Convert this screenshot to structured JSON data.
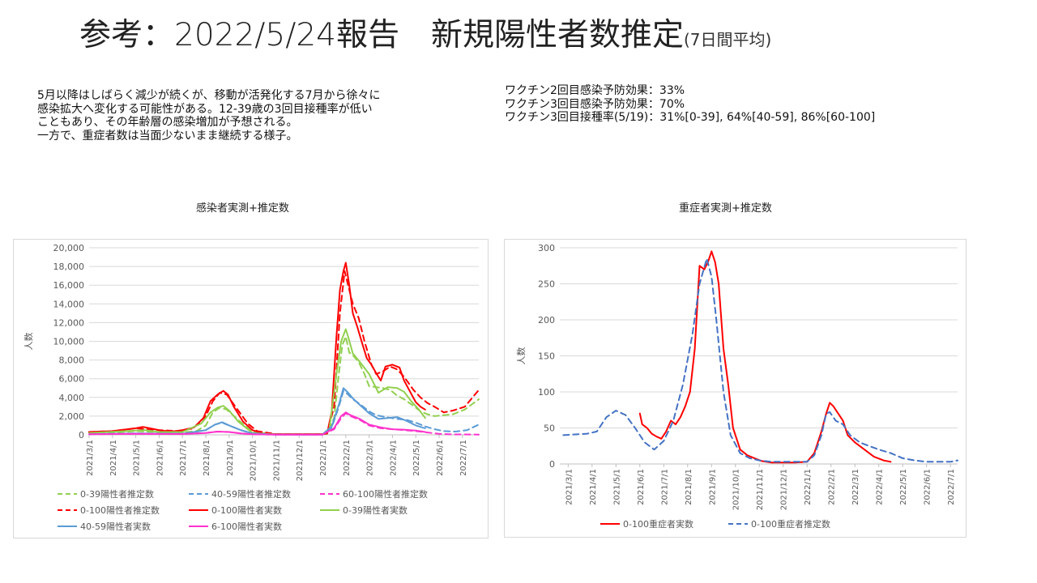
{
  "title": {
    "main": "参考：2022/5/24報告　新規陽性者数推定",
    "sub": "(7日間平均)"
  },
  "notes_left": [
    "5月以降はしばらく減少が続くが、移動が活発化する7月から徐々に",
    "感染拡大へ変化する可能性がある。12-39歳の3回目接種率が低い",
    "こともあり、その年齢層の感染増加が予想される。",
    "一方で、重症者数は当面少ないまま継続する様子。"
  ],
  "notes_right": [
    "ワクチン2回目感染予防効果：33%",
    "ワクチン3回目感染予防効果：70%",
    "ワクチン3回目接種率(5/19)：31%[0-39], 64%[40-59], 86%[60-100]"
  ],
  "chart_data": [
    {
      "type": "line",
      "title": "感染者実測+推定数",
      "ylabel": "人数",
      "ylim": [
        0,
        20000
      ],
      "y_ticks": [
        "0",
        "2,000",
        "4,000",
        "6,000",
        "8,000",
        "10,000",
        "12,000",
        "14,000",
        "16,000",
        "18,000",
        "20,000"
      ],
      "x_ticks": [
        "2021/3/1",
        "2021/4/1",
        "2021/5/1",
        "2021/6/1",
        "2021/7/1",
        "2021/8/1",
        "2021/9/1",
        "2021/10/1",
        "2021/11/1",
        "2021/12/1",
        "2022/1/1",
        "2022/2/1",
        "2022/3/1",
        "2022/4/1",
        "2022/5/1",
        "2022/6/1",
        "2022/7/1"
      ],
      "x_range_month_index": [
        0,
        16.7
      ],
      "legend_placement": "bottom",
      "series": [
        {
          "name": "0-39陽性者推定数",
          "color": "#92d050",
          "dash": true,
          "x": [
            0,
            1,
            2,
            3,
            4,
            4.6,
            5,
            5.3,
            5.6,
            5.9,
            6.3,
            6.8,
            7,
            8,
            9,
            10,
            10.2,
            10.5,
            10.7,
            10.85,
            11.0,
            11.15,
            11.3,
            11.55,
            11.8,
            12.0,
            12.3,
            12.6,
            12.9,
            13.2,
            13.5,
            13.9,
            14.2,
            14.5,
            14.8,
            15.2,
            15.6,
            16.1,
            16.7
          ],
          "y": [
            200,
            250,
            400,
            300,
            250,
            400,
            1000,
            2400,
            2900,
            2700,
            1800,
            700,
            300,
            50,
            50,
            50,
            100,
            1800,
            6500,
            9600,
            10500,
            8800,
            8500,
            7800,
            6500,
            5200,
            5100,
            5000,
            4800,
            4200,
            3800,
            3100,
            2500,
            2200,
            2000,
            2100,
            2200,
            2700,
            3800
          ]
        },
        {
          "name": "40-59陽性者推定数",
          "color": "#5b9bd5",
          "dash": true,
          "x": [
            0,
            2,
            4,
            5,
            5.4,
            5.7,
            6,
            6.5,
            7,
            8,
            9,
            10,
            10.4,
            10.7,
            10.9,
            11.1,
            11.3,
            11.6,
            12.0,
            12.3,
            12.7,
            13.2,
            13.6,
            14.0,
            14.4,
            14.8,
            15.2,
            15.7,
            16.2,
            16.7
          ],
          "y": [
            80,
            150,
            100,
            500,
            1100,
            1300,
            1000,
            500,
            150,
            30,
            30,
            30,
            800,
            3000,
            4700,
            4300,
            3800,
            3300,
            2500,
            2100,
            1900,
            1700,
            1600,
            1300,
            900,
            600,
            400,
            350,
            500,
            1100
          ]
        },
        {
          "name": "60-100陽性者推定数",
          "color": "#ff33cc",
          "dash": true,
          "x": [
            0,
            2,
            4,
            5,
            5.5,
            6,
            6.5,
            7,
            8,
            9,
            10,
            10.5,
            10.8,
            11.0,
            11.2,
            11.6,
            12.0,
            12.5,
            13.0,
            13.5,
            14.0,
            14.5,
            15.0,
            15.5,
            16.7
          ],
          "y": [
            60,
            100,
            80,
            200,
            350,
            300,
            150,
            60,
            20,
            20,
            20,
            600,
            1800,
            2300,
            2000,
            1600,
            1000,
            700,
            600,
            500,
            400,
            250,
            100,
            50,
            30
          ]
        },
        {
          "name": "0-100陽性者推定数",
          "color": "#ff0000",
          "dash": true,
          "x": [
            0,
            1,
            2,
            3,
            3.8,
            4.4,
            4.9,
            5.3,
            5.6,
            5.9,
            6.3,
            6.8,
            7.2,
            8,
            9,
            10,
            10.2,
            10.5,
            10.75,
            10.95,
            11.1,
            11.3,
            11.55,
            11.8,
            12.1,
            12.3,
            12.6,
            12.9,
            13.2,
            13.5,
            13.9,
            14.2,
            14.5,
            14.8,
            15.2,
            15.6,
            16.1,
            16.7
          ],
          "y": [
            300,
            400,
            700,
            500,
            400,
            650,
            1500,
            3600,
            4500,
            4300,
            2900,
            1200,
            400,
            80,
            80,
            80,
            200,
            3000,
            13000,
            17500,
            16000,
            14000,
            12500,
            10000,
            7500,
            6500,
            6800,
            7300,
            7000,
            6200,
            4800,
            4000,
            3400,
            3000,
            2400,
            2600,
            3000,
            4800
          ]
        },
        {
          "name": "0-100陽性者実数",
          "color": "#ff0000",
          "dash": false,
          "x": [
            0,
            1,
            2,
            2.3,
            2.6,
            3,
            3.5,
            4,
            4.5,
            4.9,
            5.2,
            5.5,
            5.75,
            5.95,
            6.2,
            6.6,
            7,
            7.5,
            8,
            9,
            10,
            10.2,
            10.4,
            10.6,
            10.75,
            10.9,
            11.0,
            11.15,
            11.3,
            11.5,
            11.7,
            11.9,
            12.1,
            12.3,
            12.5,
            12.7,
            13.0,
            13.3,
            13.5,
            13.8,
            14.0,
            14.2,
            14.4
          ],
          "y": [
            300,
            400,
            700,
            850,
            700,
            500,
            350,
            500,
            800,
            1800,
            3600,
            4300,
            4700,
            4300,
            3000,
            1400,
            500,
            100,
            80,
            80,
            80,
            150,
            2500,
            10500,
            15500,
            17500,
            18400,
            16000,
            13000,
            11500,
            9800,
            8200,
            7500,
            6600,
            5800,
            7300,
            7500,
            7200,
            5800,
            4400,
            3500,
            3000,
            2700
          ]
        },
        {
          "name": "0-39陽性者実数",
          "color": "#92d050",
          "dash": false,
          "x": [
            0,
            2,
            2.4,
            3,
            4,
            4.8,
            5.2,
            5.5,
            5.75,
            6,
            6.4,
            7,
            8,
            9,
            10,
            10.3,
            10.6,
            10.8,
            11.0,
            11.1,
            11.3,
            11.6,
            12.0,
            12.4,
            12.8,
            13.2,
            13.5,
            13.8,
            14.1,
            14.4
          ],
          "y": [
            200,
            450,
            500,
            300,
            300,
            1200,
            2400,
            2900,
            3100,
            2600,
            1400,
            200,
            40,
            40,
            40,
            700,
            6500,
            10000,
            11300,
            10500,
            8700,
            7800,
            6500,
            4500,
            5100,
            5000,
            4600,
            3600,
            2800,
            1800
          ]
        },
        {
          "name": "40-59陽性者実数",
          "color": "#5b9bd5",
          "dash": false,
          "x": [
            0,
            2,
            4,
            5,
            5.4,
            5.7,
            6,
            6.5,
            7,
            8,
            9,
            10,
            10.4,
            10.7,
            10.9,
            11.1,
            11.3,
            11.6,
            12.0,
            12.4,
            12.8,
            13.2,
            13.6,
            14.0,
            14.4
          ],
          "y": [
            80,
            150,
            120,
            500,
            1100,
            1350,
            1000,
            500,
            150,
            30,
            30,
            30,
            900,
            3200,
            5000,
            4500,
            3900,
            3200,
            2300,
            1700,
            1800,
            1900,
            1500,
            1000,
            700
          ]
        },
        {
          "name": "6-100陽性者実数",
          "color": "#ff33cc",
          "dash": false,
          "x": [
            0,
            2,
            4,
            5,
            5.5,
            6,
            6.5,
            7,
            8,
            9,
            10,
            10.5,
            10.8,
            11.0,
            11.2,
            11.6,
            12.0,
            12.5,
            13.0,
            13.5,
            14.0,
            14.4
          ],
          "y": [
            60,
            110,
            90,
            200,
            350,
            300,
            150,
            60,
            20,
            20,
            20,
            700,
            2000,
            2400,
            2100,
            1700,
            1100,
            800,
            600,
            550,
            450,
            300
          ]
        }
      ]
    },
    {
      "type": "line",
      "title": "重症者実測+推定数",
      "ylabel": "人数",
      "ylim": [
        0,
        300
      ],
      "y_ticks": [
        "0",
        "50",
        "100",
        "150",
        "200",
        "250",
        "300"
      ],
      "x_ticks": [
        "2021/3/1",
        "2021/4/1",
        "2021/5/1",
        "2021/6/1",
        "2021/7/1",
        "2021/8/1",
        "2021/9/1",
        "2021/10/1",
        "2021/11/1",
        "2021/12/1",
        "2022/1/1",
        "2022/2/1",
        "2022/3/1",
        "2022/4/1",
        "2022/5/1",
        "2022/6/1",
        "2022/7/1"
      ],
      "x_range_month_index": [
        -0.35,
        16.3
      ],
      "legend_placement": "bottom",
      "series": [
        {
          "name": "0-100重症者実数",
          "color": "#ff0000",
          "dash": false,
          "x": [
            3.0,
            3.1,
            3.3,
            3.5,
            3.7,
            3.9,
            4.1,
            4.3,
            4.5,
            4.7,
            4.9,
            5.1,
            5.3,
            5.5,
            5.7,
            5.85,
            6.0,
            6.15,
            6.3,
            6.5,
            6.7,
            6.9,
            7.2,
            7.5,
            7.8,
            8.1,
            8.5,
            9,
            9.5,
            10,
            10.3,
            10.6,
            10.8,
            10.95,
            11.1,
            11.3,
            11.5,
            11.7,
            12.0,
            12.4,
            12.8,
            13.2,
            13.5
          ],
          "y": [
            70,
            55,
            50,
            42,
            38,
            35,
            45,
            60,
            55,
            65,
            80,
            100,
            160,
            275,
            270,
            280,
            295,
            280,
            250,
            160,
            110,
            50,
            20,
            12,
            8,
            4,
            2,
            2,
            2,
            3,
            15,
            45,
            70,
            85,
            80,
            70,
            60,
            40,
            30,
            20,
            10,
            5,
            3
          ]
        },
        {
          "name": "0-100重症者推定数",
          "color": "#4472c4",
          "dash": true,
          "x": [
            -0.2,
            0.3,
            0.8,
            1.2,
            1.6,
            2.0,
            2.4,
            2.8,
            3.2,
            3.6,
            4.0,
            4.4,
            4.8,
            5.2,
            5.5,
            5.8,
            6.0,
            6.2,
            6.5,
            6.8,
            7.2,
            7.6,
            8,
            8.5,
            9,
            9.5,
            10,
            10.3,
            10.6,
            10.8,
            10.95,
            11.2,
            11.5,
            11.8,
            12.2,
            12.6,
            13.0,
            13.5,
            14.0,
            14.5,
            15.0,
            15.5,
            16.0,
            16.3
          ],
          "y": [
            40,
            41,
            42,
            45,
            65,
            74,
            68,
            50,
            30,
            20,
            32,
            60,
            110,
            180,
            250,
            285,
            260,
            200,
            100,
            40,
            15,
            8,
            5,
            3,
            3,
            3,
            3,
            12,
            40,
            70,
            72,
            60,
            55,
            40,
            30,
            25,
            20,
            15,
            8,
            5,
            3,
            3,
            3,
            5
          ]
        }
      ]
    }
  ],
  "chart1_legend": [
    {
      "label": "0-39陽性者推定数",
      "color": "#92d050",
      "dash": true
    },
    {
      "label": "40-59陽性者推定数",
      "color": "#5b9bd5",
      "dash": true
    },
    {
      "label": "60-100陽性者推定数",
      "color": "#ff33cc",
      "dash": true
    },
    {
      "label": "0-100陽性者推定数",
      "color": "#ff0000",
      "dash": true
    },
    {
      "label": "0-100陽性者実数",
      "color": "#ff0000",
      "dash": false
    },
    {
      "label": "0-39陽性者実数",
      "color": "#92d050",
      "dash": false
    },
    {
      "label": "40-59陽性者実数",
      "color": "#5b9bd5",
      "dash": false
    },
    {
      "label": "6-100陽性者実数",
      "color": "#ff33cc",
      "dash": false
    }
  ],
  "chart2_legend": [
    {
      "label": "0-100重症者実数",
      "color": "#ff0000",
      "dash": false
    },
    {
      "label": "0-100重症者推定数",
      "color": "#4472c4",
      "dash": true
    }
  ]
}
